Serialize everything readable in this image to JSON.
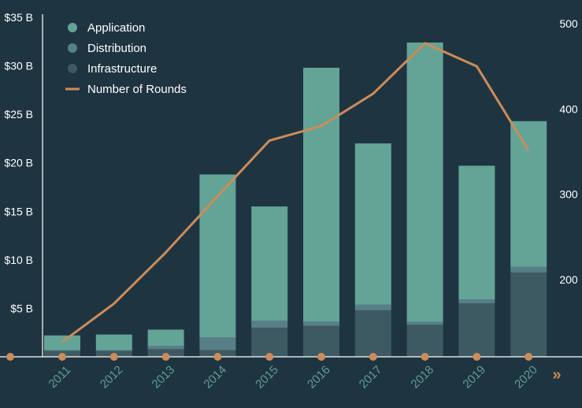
{
  "chart_data": {
    "type": "bar",
    "stacked": true,
    "categories": [
      "2011",
      "2012",
      "2013",
      "2014",
      "2015",
      "2016",
      "2017",
      "2018",
      "2019",
      "2020"
    ],
    "series": [
      {
        "name": "Infrastructure",
        "axis": "left",
        "color": "#3d5a63",
        "values": [
          0.6,
          0.6,
          0.8,
          0.7,
          3.0,
          3.2,
          4.8,
          3.3,
          5.5,
          8.7
        ]
      },
      {
        "name": "Distribution",
        "axis": "left",
        "color": "#587f87",
        "values": [
          0.1,
          0.1,
          0.3,
          1.3,
          0.7,
          0.4,
          0.6,
          0.3,
          0.4,
          0.6
        ]
      },
      {
        "name": "Application",
        "axis": "left",
        "color": "#63a497",
        "values": [
          1.5,
          1.6,
          1.7,
          16.8,
          11.8,
          26.2,
          16.6,
          28.8,
          13.8,
          15.0
        ]
      },
      {
        "name": "Number of Rounds",
        "type": "line",
        "axis": "right",
        "color": "#cc8c5a",
        "values": [
          127,
          172,
          232,
          298,
          363,
          380,
          418,
          477,
          450,
          351
        ]
      }
    ],
    "left_axis": {
      "min": 0,
      "max": 35,
      "ticks": [
        5,
        10,
        15,
        20,
        25,
        30,
        35
      ],
      "tick_labels": [
        "$5 B",
        "$10 B",
        "$15 B",
        "$20 B",
        "$25 B",
        "$30 B",
        "$35 B"
      ]
    },
    "right_axis": {
      "min": 105,
      "max": 500,
      "ticks": [
        200,
        300,
        400,
        500
      ],
      "tick_labels": [
        "200",
        "300",
        "400",
        "500"
      ]
    },
    "legend": [
      "Application",
      "Distribution",
      "Infrastructure",
      "Number of Rounds"
    ],
    "legend_position": "top-left",
    "grid": false,
    "more_glyph": "»"
  }
}
